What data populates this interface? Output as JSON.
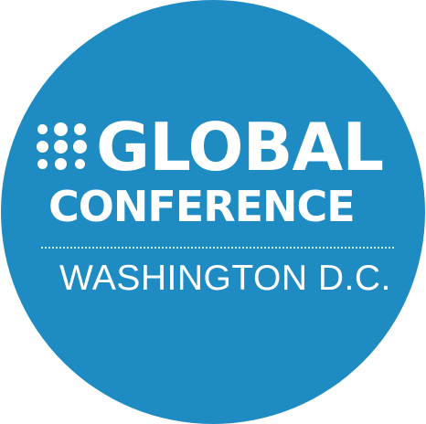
{
  "badge": {
    "title_line1": "GLOBAL",
    "title_line2": "CONFERENCE",
    "location": "WASHINGTON D.C.",
    "logo_icon": "dot-cluster-icon",
    "colors": {
      "background": "#1e8bc3",
      "foreground": "#ffffff"
    }
  }
}
